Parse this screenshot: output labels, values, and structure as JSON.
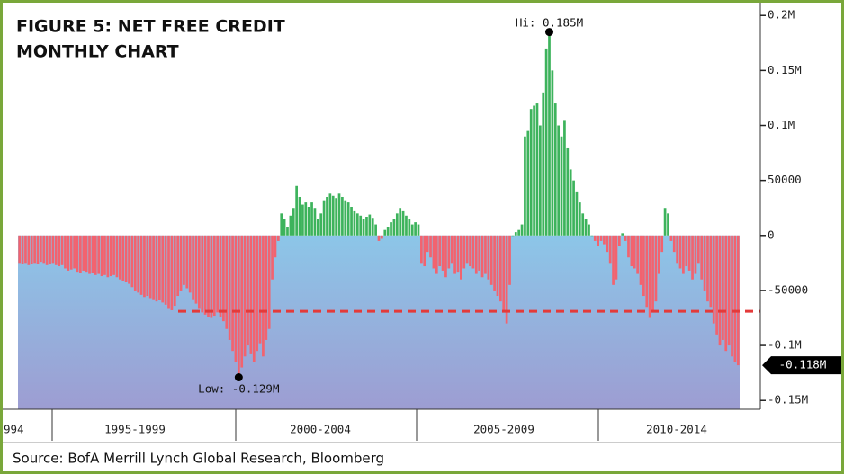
{
  "chart_data": {
    "type": "bar",
    "title_lines": [
      "FIGURE 5: NET FREE CREDIT",
      "MONTHLY CHART"
    ],
    "source": "Source: BofA Merrill Lynch Global Research, Bloomberg",
    "x_labels": [
      "994",
      "1995-1999",
      "2000-2004",
      "2005-2009",
      "2010-2014"
    ],
    "positive_color": "#3db35c",
    "negative_color": "#f2636f",
    "ylim": [
      -158000,
      210000
    ],
    "yticks": [
      {
        "value": 200000,
        "label": "0.2M"
      },
      {
        "value": 150000,
        "label": "0.15M"
      },
      {
        "value": 100000,
        "label": "0.1M"
      },
      50000,
      0,
      -50000,
      {
        "value": -100000,
        "label": "-0.1M"
      },
      {
        "value": -150000,
        "label": "-0.15M"
      }
    ],
    "reference_line": {
      "value": -69000,
      "color": "#e43a3a"
    },
    "high_label": "Hi: 0.185M",
    "low_label": "Low: -0.129M",
    "last_label": "-0.118M",
    "values": [
      -25000,
      -26000,
      -25000,
      -27000,
      -26000,
      -25000,
      -26000,
      -24000,
      -25000,
      -27000,
      -26000,
      -25000,
      -27000,
      -28000,
      -27000,
      -30000,
      -32000,
      -31000,
      -30000,
      -33000,
      -34000,
      -32000,
      -33000,
      -35000,
      -34000,
      -36000,
      -35000,
      -37000,
      -36000,
      -38000,
      -37000,
      -36000,
      -38000,
      -40000,
      -41000,
      -42000,
      -44000,
      -47000,
      -50000,
      -52000,
      -54000,
      -56000,
      -55000,
      -57000,
      -58000,
      -60000,
      -59000,
      -61000,
      -63000,
      -66000,
      -68000,
      -64000,
      -55000,
      -50000,
      -45000,
      -48000,
      -52000,
      -58000,
      -62000,
      -66000,
      -70000,
      -72000,
      -74000,
      -75000,
      -73000,
      -70000,
      -74000,
      -78000,
      -85000,
      -95000,
      -105000,
      -115000,
      -129000,
      -120000,
      -110000,
      -100000,
      -108000,
      -115000,
      -105000,
      -98000,
      -110000,
      -95000,
      -85000,
      -40000,
      -20000,
      -5000,
      20000,
      15000,
      8000,
      18000,
      25000,
      45000,
      35000,
      28000,
      30000,
      26000,
      30000,
      25000,
      15000,
      20000,
      32000,
      35000,
      38000,
      36000,
      34000,
      38000,
      35000,
      32000,
      30000,
      26000,
      22000,
      20000,
      18000,
      15000,
      17000,
      19000,
      16000,
      10000,
      -5000,
      -3000,
      5000,
      8000,
      12000,
      15000,
      20000,
      25000,
      22000,
      18000,
      15000,
      10000,
      12000,
      10000,
      -25000,
      -28000,
      -15000,
      -20000,
      -30000,
      -35000,
      -28000,
      -32000,
      -38000,
      -30000,
      -25000,
      -35000,
      -33000,
      -40000,
      -30000,
      -25000,
      -28000,
      -30000,
      -35000,
      -32000,
      -38000,
      -35000,
      -40000,
      -45000,
      -50000,
      -55000,
      -60000,
      -70000,
      -80000,
      -45000,
      0,
      3000,
      5000,
      10000,
      90000,
      95000,
      115000,
      118000,
      120000,
      100000,
      130000,
      170000,
      185000,
      150000,
      120000,
      100000,
      90000,
      105000,
      80000,
      60000,
      50000,
      40000,
      30000,
      20000,
      15000,
      10000,
      0,
      -5000,
      -10000,
      -5000,
      -8000,
      -15000,
      -25000,
      -45000,
      -40000,
      -10000,
      2000,
      -5000,
      -20000,
      -28000,
      -30000,
      -35000,
      -45000,
      -55000,
      -65000,
      -75000,
      -70000,
      -60000,
      -35000,
      -15000,
      25000,
      20000,
      -5000,
      -15000,
      -25000,
      -30000,
      -35000,
      -28000,
      -32000,
      -40000,
      -35000,
      -25000,
      -40000,
      -50000,
      -60000,
      -65000,
      -80000,
      -90000,
      -100000,
      -95000,
      -105000,
      -100000,
      -110000,
      -115000,
      -118000
    ]
  }
}
